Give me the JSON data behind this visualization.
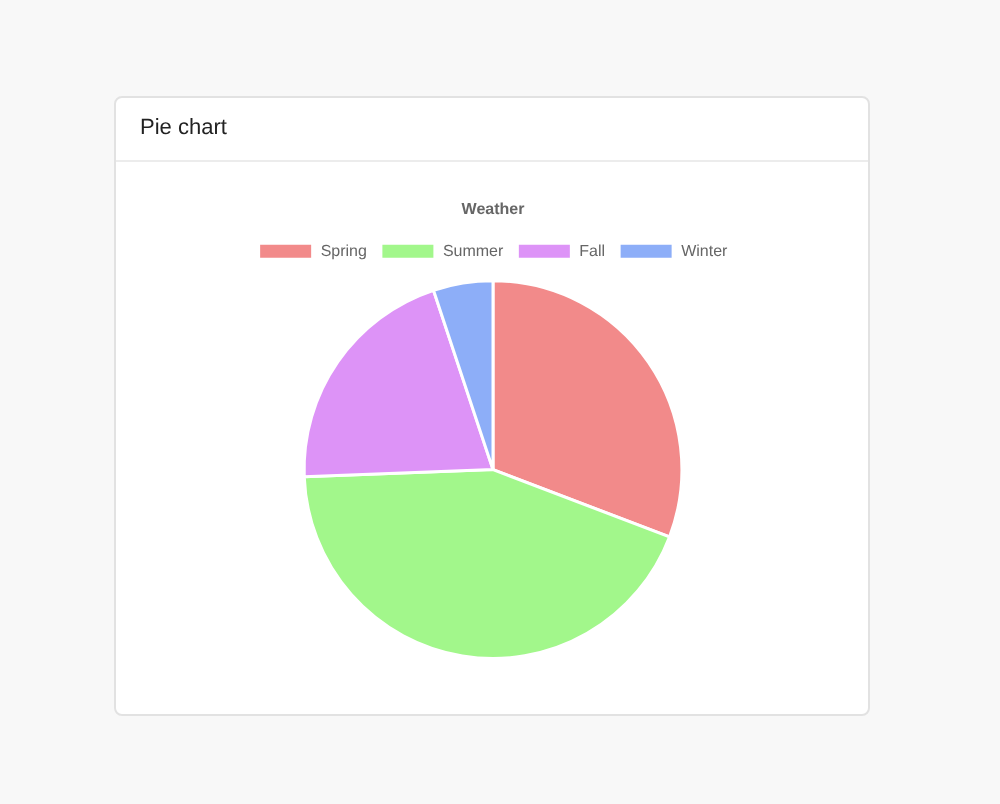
{
  "chart_data": {
    "type": "pie",
    "title": "Pie chart",
    "subtitle": "Weather",
    "categories": [
      "Spring",
      "Summer",
      "Fall",
      "Winter"
    ],
    "values": [
      30.8,
      43.6,
      20.5,
      5.1
    ],
    "colors": [
      "#f28a8a",
      "#a2f78b",
      "#dd93f7",
      "#8daef8"
    ],
    "legend": "top"
  }
}
